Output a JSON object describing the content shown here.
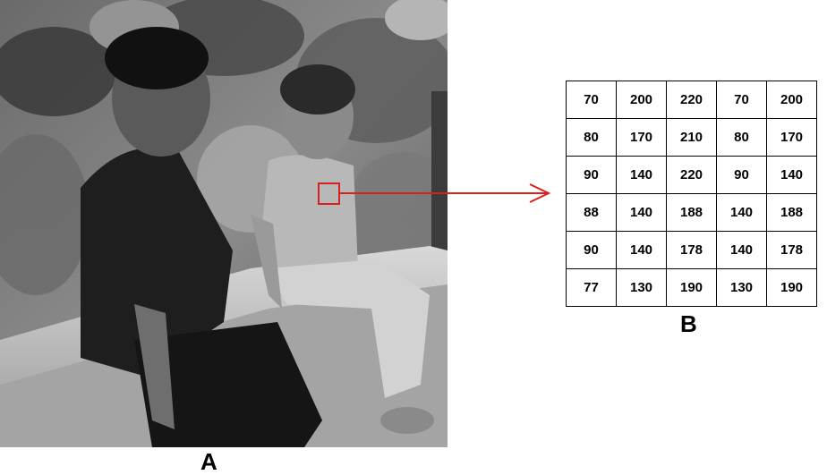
{
  "labels": {
    "photo": "A",
    "grid": "B"
  },
  "grid": [
    [
      "70",
      "200",
      "220",
      "70",
      "200"
    ],
    [
      "80",
      "170",
      "210",
      "80",
      "170"
    ],
    [
      "90",
      "140",
      "220",
      "90",
      "140"
    ],
    [
      "88",
      "140",
      "188",
      "140",
      "188"
    ],
    [
      "90",
      "140",
      "178",
      "140",
      "178"
    ],
    [
      "77",
      "130",
      "190",
      "130",
      "190"
    ]
  ],
  "colors": {
    "highlight": "#d92020",
    "grid_border": "#000000"
  }
}
